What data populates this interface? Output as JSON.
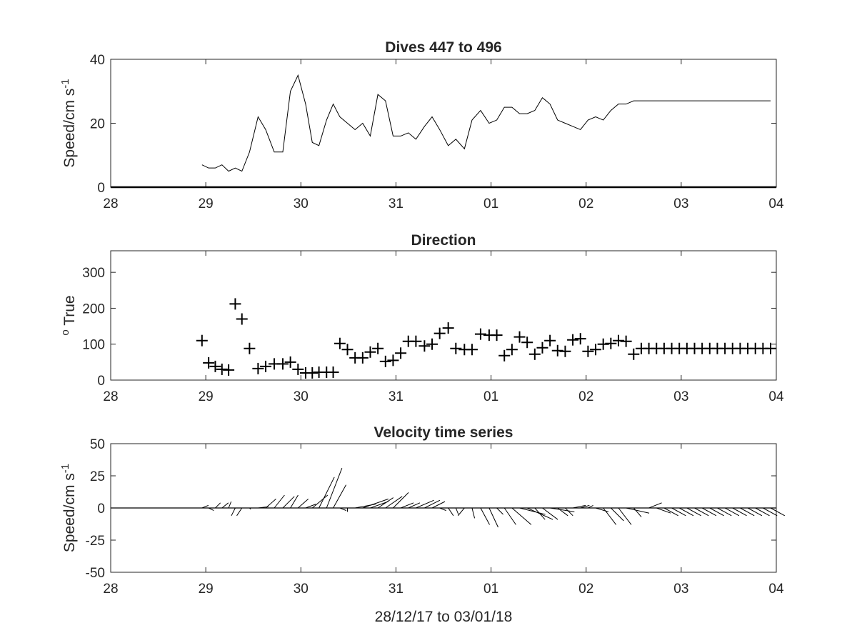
{
  "figure": {
    "xlabel": "28/12/17 to 03/01/18"
  },
  "chart_data": [
    {
      "type": "line",
      "title": "Dives 447 to 496",
      "ylabel_main": "Speed/cm s",
      "ylabel_sup": "-1",
      "xlabel": "",
      "x_tick_labels": [
        "28",
        "29",
        "30",
        "31",
        "01",
        "02",
        "03",
        "04"
      ],
      "x_tick_days": [
        28,
        29,
        30,
        31,
        32,
        33,
        34,
        35
      ],
      "xlim": [
        28,
        35
      ],
      "ylim": [
        0,
        40
      ],
      "y_ticks": [
        0,
        20,
        40
      ],
      "series": [
        {
          "x": [
            28.96,
            29.03,
            29.1,
            29.17,
            29.24,
            29.31,
            29.38,
            29.46,
            29.55,
            29.63,
            29.72,
            29.81,
            29.89,
            29.97,
            30.05,
            30.12,
            30.19,
            30.27,
            30.34,
            30.41,
            30.49,
            30.57,
            30.65,
            30.73,
            30.81,
            30.89,
            30.97,
            31.05,
            31.13,
            31.21,
            31.3,
            31.38,
            31.46,
            31.55,
            31.63,
            31.72,
            31.8,
            31.89,
            31.98,
            32.06,
            32.14,
            32.22,
            32.3,
            32.38,
            32.46,
            32.54,
            32.62,
            32.7,
            32.78,
            32.86,
            32.94,
            33.02,
            33.1,
            33.18,
            33.26,
            33.34,
            33.42,
            33.5,
            33.58,
            33.66,
            33.74,
            33.82,
            33.9,
            33.98,
            34.06,
            34.14,
            34.22,
            34.3,
            34.38,
            34.46,
            34.54,
            34.62,
            34.7,
            34.78,
            34.86,
            34.94
          ],
          "values": [
            7,
            6,
            6,
            7,
            5,
            6,
            5,
            11,
            22,
            18,
            11,
            11,
            30,
            35,
            26,
            14,
            13,
            21,
            26,
            22,
            20,
            18,
            20,
            16,
            29,
            27,
            16,
            16,
            17,
            15,
            19,
            22,
            18,
            13,
            15,
            12,
            21,
            24,
            20,
            21,
            25,
            25,
            23,
            23,
            24,
            28,
            26,
            21,
            20,
            19,
            18,
            21,
            22,
            21,
            24,
            26,
            26,
            27,
            27,
            27,
            27,
            27,
            27,
            27,
            27,
            27,
            27,
            27,
            27,
            27,
            27,
            27,
            27,
            27,
            27,
            27
          ]
        }
      ],
      "zero_line": true
    },
    {
      "type": "scatter",
      "title": "Direction",
      "ylabel_sup": "o",
      "ylabel_main": " True",
      "xlabel": "",
      "x_tick_labels": [
        "28",
        "29",
        "30",
        "31",
        "01",
        "02",
        "03",
        "04"
      ],
      "x_tick_days": [
        28,
        29,
        30,
        31,
        32,
        33,
        34,
        35
      ],
      "xlim": [
        28,
        35
      ],
      "ylim": [
        0,
        360
      ],
      "y_ticks": [
        0,
        100,
        200,
        300
      ],
      "marker": "+",
      "series": [
        {
          "x": [
            28.96,
            29.03,
            29.1,
            29.17,
            29.24,
            29.31,
            29.38,
            29.46,
            29.55,
            29.63,
            29.72,
            29.81,
            29.89,
            29.97,
            30.05,
            30.12,
            30.19,
            30.27,
            30.34,
            30.41,
            30.49,
            30.57,
            30.65,
            30.73,
            30.81,
            30.89,
            30.97,
            31.05,
            31.13,
            31.21,
            31.3,
            31.38,
            31.46,
            31.55,
            31.63,
            31.72,
            31.8,
            31.89,
            31.98,
            32.06,
            32.14,
            32.22,
            32.3,
            32.38,
            32.46,
            32.54,
            32.62,
            32.7,
            32.78,
            32.86,
            32.94,
            33.02,
            33.1,
            33.18,
            33.26,
            33.34,
            33.42,
            33.5,
            33.58,
            33.66,
            33.74,
            33.82,
            33.9,
            33.98,
            34.06,
            34.14,
            34.22,
            34.3,
            34.38,
            34.46,
            34.54,
            34.62,
            34.7,
            34.78,
            34.86,
            34.94
          ],
          "values": [
            110,
            48,
            38,
            30,
            28,
            212,
            170,
            88,
            32,
            38,
            45,
            45,
            50,
            30,
            20,
            20,
            22,
            22,
            22,
            102,
            85,
            62,
            62,
            78,
            88,
            52,
            55,
            75,
            108,
            108,
            95,
            100,
            130,
            145,
            88,
            85,
            85,
            128,
            125,
            125,
            68,
            85,
            120,
            105,
            72,
            90,
            110,
            82,
            80,
            112,
            115,
            80,
            85,
            100,
            102,
            110,
            108,
            72,
            88,
            88,
            88,
            88,
            88,
            88,
            88,
            88,
            88,
            88,
            88,
            88,
            88,
            88,
            88,
            88,
            88,
            88
          ]
        }
      ]
    },
    {
      "type": "line",
      "title": "Velocity time series",
      "ylabel_main": "Speed/cm s",
      "ylabel_sup": "-1",
      "xlabel": "28/12/17 to 03/01/18",
      "x_tick_labels": [
        "28",
        "29",
        "30",
        "31",
        "01",
        "02",
        "03",
        "04"
      ],
      "x_tick_days": [
        28,
        29,
        30,
        31,
        32,
        33,
        34,
        35
      ],
      "xlim": [
        28,
        35
      ],
      "ylim": [
        -50,
        50
      ],
      "y_ticks": [
        -50,
        -25,
        0,
        25,
        50
      ],
      "y_tick_labels": [
        "-50",
        "-25",
        "0",
        "25",
        "50"
      ],
      "stick_plot": true,
      "series": [
        {
          "name": "",
          "x": [
            28.96,
            29.03,
            29.1,
            29.17,
            29.24,
            29.31,
            29.38,
            29.46,
            29.55,
            29.63,
            29.72,
            29.81,
            29.89,
            29.97,
            30.05,
            30.12,
            30.19,
            30.27,
            30.34,
            30.41,
            30.49,
            30.57,
            30.65,
            30.73,
            30.81,
            30.89,
            30.97,
            31.05,
            31.13,
            31.21,
            31.3,
            31.38,
            31.46,
            31.55,
            31.63,
            31.72,
            31.8,
            31.89,
            31.98,
            32.06,
            32.14,
            32.22,
            32.3,
            32.38,
            32.46,
            32.54,
            32.62,
            32.7,
            32.78,
            32.86,
            32.94,
            33.02,
            33.1,
            33.18,
            33.26,
            33.34,
            33.42,
            33.5,
            33.58,
            33.66,
            33.74,
            33.82,
            33.9,
            33.98,
            34.06,
            34.14,
            34.22,
            34.3,
            34.38,
            34.46,
            34.54,
            34.62,
            34.7,
            34.78,
            34.86,
            34.94
          ],
          "u": [
            5,
            4,
            4,
            5,
            2,
            -3,
            -4,
            1,
            8,
            8,
            8,
            9,
            6,
            8,
            8,
            12,
            12,
            12,
            10,
            5,
            0,
            16,
            20,
            14,
            12,
            13,
            12,
            10,
            9,
            14,
            12,
            10,
            5,
            4,
            2,
            -5,
            2,
            7,
            7,
            5,
            9,
            15,
            20,
            20,
            8,
            12,
            19,
            8,
            6,
            10,
            7,
            4,
            10,
            10,
            10,
            10,
            18,
            6,
            10,
            10,
            11,
            11,
            11,
            11,
            11,
            11,
            11,
            11,
            11,
            11,
            11,
            11,
            11,
            11,
            11,
            11
          ],
          "v": [
            2,
            -2,
            4,
            4,
            5,
            -6,
            -6,
            -1,
            1,
            7,
            10,
            9,
            10,
            7,
            3,
            10,
            24,
            31,
            18,
            -2,
            -3,
            3,
            7,
            5,
            8,
            9,
            12,
            4,
            4,
            6,
            6,
            5,
            -2,
            -6,
            -5,
            -6,
            -8,
            -13,
            -15,
            -5,
            -13,
            -13,
            -5,
            -9,
            -9,
            -9,
            -3,
            -6,
            -6,
            2,
            2,
            2,
            -3,
            -13,
            -10,
            -13,
            -4,
            -7,
            0,
            4,
            -4,
            -6,
            -6,
            -6,
            -6,
            -6,
            -6,
            -6,
            -6,
            -6,
            -6,
            -6,
            -6,
            -6,
            -6,
            -6
          ]
        }
      ],
      "zero_line": true
    }
  ]
}
